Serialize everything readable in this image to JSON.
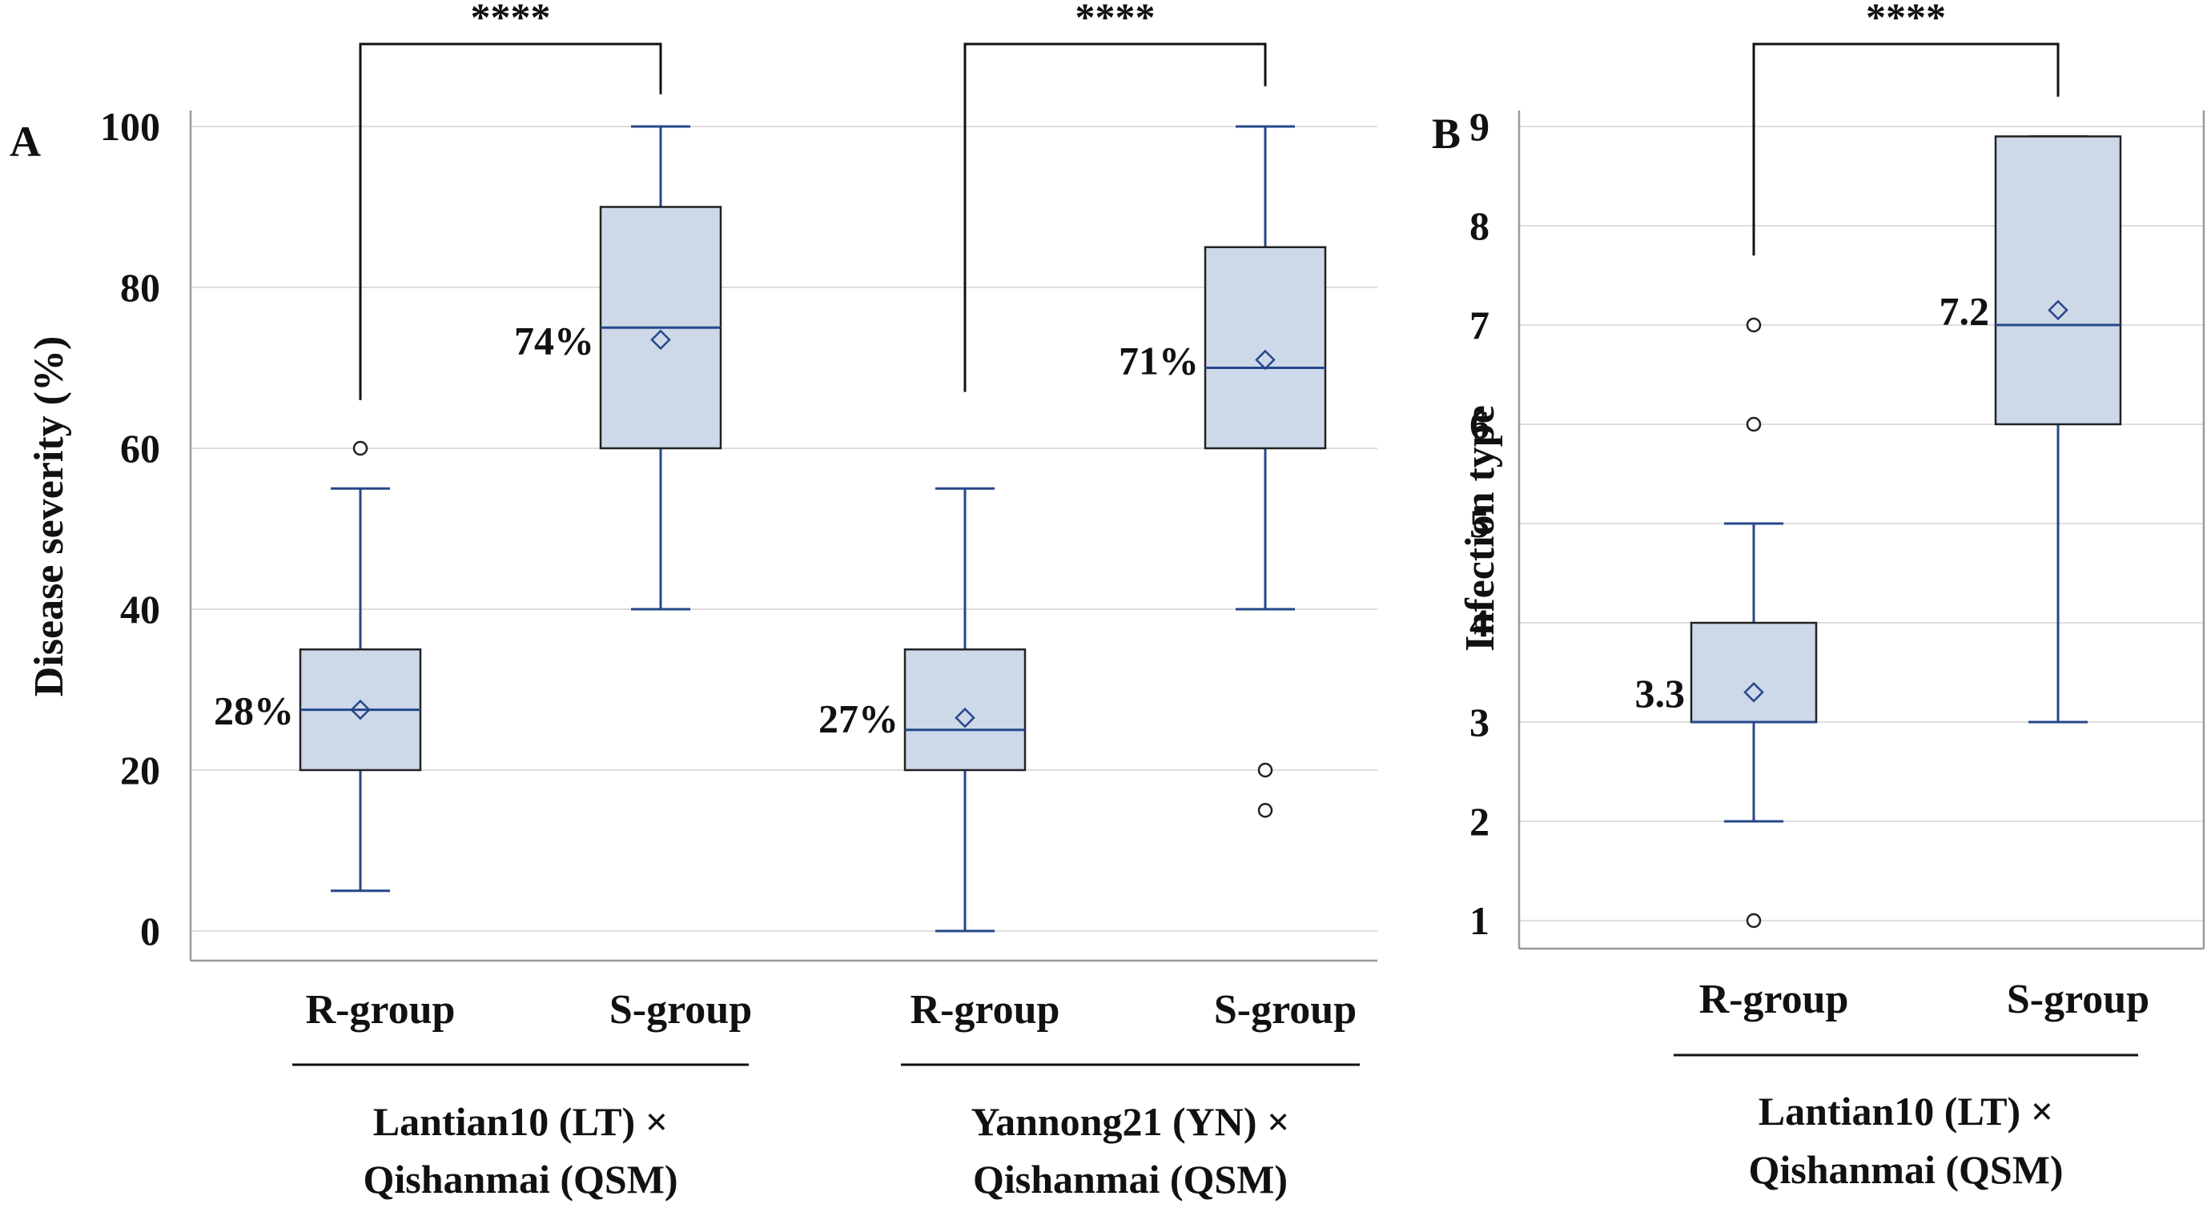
{
  "colors": {
    "box_fill": "#cdd8e8",
    "box_line": "#26478a",
    "grid": "#dddddd",
    "axis": "#999999",
    "text": "#111111",
    "bracket": "#111111"
  },
  "chart_data": [
    {
      "panel_label": "A",
      "type": "box",
      "ylabel": "Disease severity (%)",
      "ylim": [
        0,
        100
      ],
      "yticks": [
        0,
        20,
        40,
        60,
        80,
        100
      ],
      "grid": true,
      "groups": [
        {
          "name": "R-group",
          "cross": "LT×QSM",
          "whisker_low": 5,
          "q1": 20,
          "median": 27.5,
          "q3": 35,
          "whisker_high": 55,
          "mean": 27.5,
          "mean_label": "28%",
          "outliers": [
            60
          ]
        },
        {
          "name": "S-group",
          "cross": "LT×QSM",
          "whisker_low": 40,
          "q1": 60,
          "median": 75,
          "q3": 90,
          "whisker_high": 100,
          "mean": 73.5,
          "mean_label": "74%",
          "outliers": []
        },
        {
          "name": "R-group",
          "cross": "YN×QSM",
          "whisker_low": 0,
          "q1": 20,
          "median": 25,
          "q3": 35,
          "whisker_high": 55,
          "mean": 26.5,
          "mean_label": "27%",
          "outliers": []
        },
        {
          "name": "S-group",
          "cross": "YN×QSM",
          "whisker_low": 40,
          "q1": 60,
          "median": 70,
          "q3": 85,
          "whisker_high": 100,
          "mean": 71,
          "mean_label": "71%",
          "outliers": [
            20,
            15
          ]
        }
      ],
      "significance": [
        {
          "between": [
            0,
            1
          ],
          "label": "****",
          "left_start": 66,
          "right_start": 104
        },
        {
          "between": [
            2,
            3
          ],
          "label": "****",
          "left_start": 67,
          "right_start": 105
        }
      ],
      "cross_labels": [
        {
          "line1": "Lantian10 (LT) ×",
          "line2": "Qishanmai (QSM)",
          "span": [
            0,
            1
          ]
        },
        {
          "line1": "Yannong21 (YN) ×",
          "line2": "Qishanmai (QSM)",
          "span": [
            2,
            3
          ]
        }
      ]
    },
    {
      "panel_label": "B",
      "type": "box",
      "ylabel": "Infection type",
      "ylim": [
        1,
        9
      ],
      "yticks": [
        1,
        2,
        3,
        4,
        5,
        6,
        7,
        8,
        9
      ],
      "grid": true,
      "groups": [
        {
          "name": "R-group",
          "whisker_low": 2,
          "q1": 3,
          "median": 3,
          "q3": 4,
          "whisker_high": 5,
          "mean": 3.3,
          "mean_label": "3.3",
          "outliers": [
            7,
            6,
            1
          ]
        },
        {
          "name": "S-group",
          "whisker_low": 3,
          "q1": 6,
          "median": 7,
          "q3": 8.9,
          "whisker_high": 8.9,
          "mean": 7.15,
          "mean_label": "7.2",
          "outliers": []
        }
      ],
      "significance": [
        {
          "between": [
            0,
            1
          ],
          "label": "****",
          "left_start": 7.7,
          "right_start": 9.3
        }
      ],
      "cross_labels": [
        {
          "line1": "Lantian10 (LT) ×",
          "line2": "Qishanmai (QSM)",
          "span": [
            0,
            1
          ]
        }
      ]
    }
  ]
}
